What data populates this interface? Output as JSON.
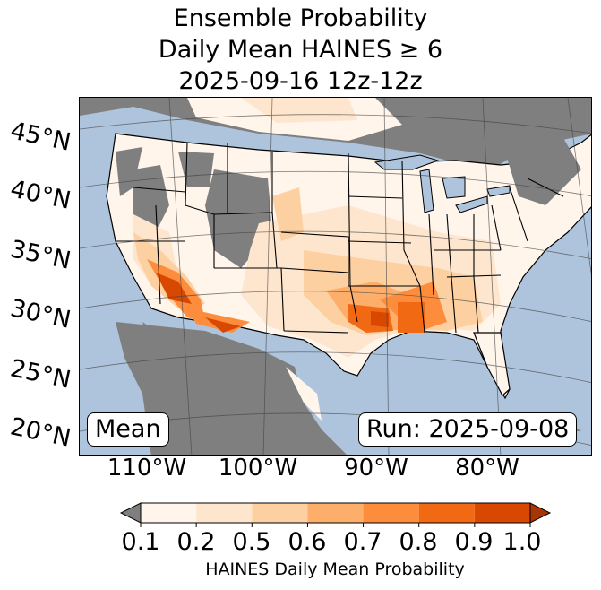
{
  "title": {
    "line1": "Ensemble Probability",
    "line2": "Daily Mean HAINES ≥ 6",
    "line3": "2025-09-16 12z-12z"
  },
  "map": {
    "lat_labels": [
      "45°N",
      "40°N",
      "35°N",
      "30°N",
      "25°N",
      "20°N"
    ],
    "lon_labels": [
      "110°W",
      "100°W",
      "90°W",
      "80°W"
    ],
    "mean_label": "Mean",
    "run_label": "Run: 2025-09-08",
    "colors": {
      "ocean": "#aec4dc",
      "no_data": "#7f7f7f",
      "land_low": "#fff5eb"
    }
  },
  "colorbar": {
    "title": "HAINES Daily Mean Probability",
    "ticks": [
      "0.1",
      "0.2",
      "0.5",
      "0.6",
      "0.7",
      "0.8",
      "0.9",
      "1.0"
    ],
    "colors": [
      "#fff5eb",
      "#fee6ce",
      "#fdd0a2",
      "#fdae6b",
      "#fd8d3c",
      "#f16913",
      "#d94801",
      "#a63603"
    ],
    "under_color": "#7f7f7f"
  }
}
